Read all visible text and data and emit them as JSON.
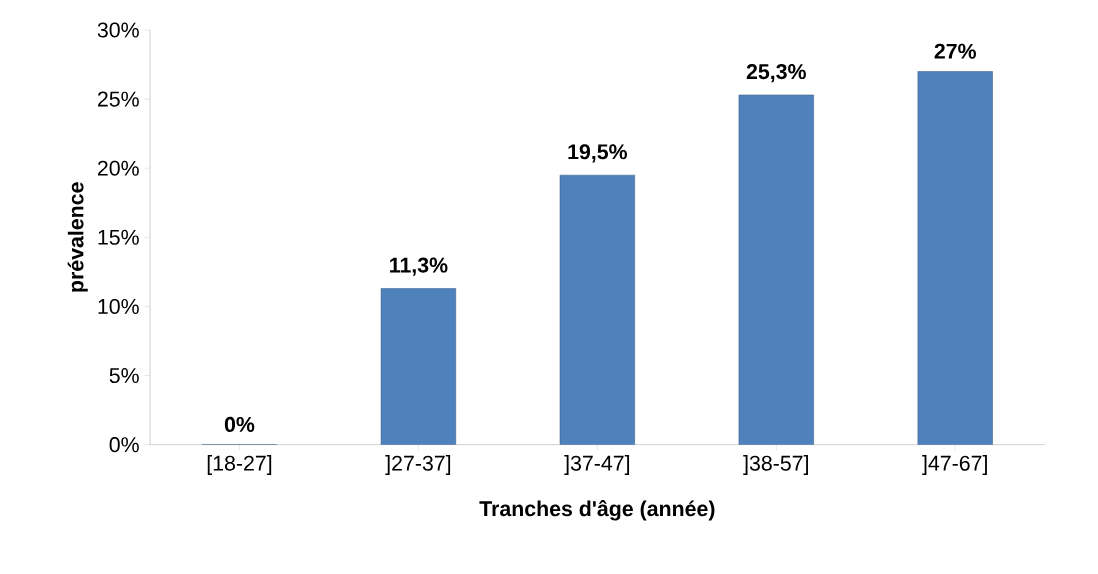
{
  "chart_data": {
    "type": "bar",
    "xlabel": "Tranches d'âge (année)",
    "ylabel": "prévalence",
    "categories": [
      "[18-27]",
      "]27-37]",
      "]37-47]",
      "]38-57]",
      "]47-67]"
    ],
    "values": [
      0,
      11.3,
      19.5,
      25.3,
      27
    ],
    "value_labels": [
      "0%",
      "11,3%",
      "19,5%",
      "25,3%",
      "27%"
    ],
    "color": "#4f81bd",
    "ylim": [
      0,
      30
    ],
    "yticks": [
      {
        "value": 0,
        "label": "0%"
      },
      {
        "value": 5,
        "label": "5%"
      },
      {
        "value": 10,
        "label": "10%"
      },
      {
        "value": 15,
        "label": "15%"
      },
      {
        "value": 20,
        "label": "20%"
      },
      {
        "value": 25,
        "label": "25%"
      },
      {
        "value": 30,
        "label": "30%"
      }
    ],
    "line_style": "solid"
  }
}
